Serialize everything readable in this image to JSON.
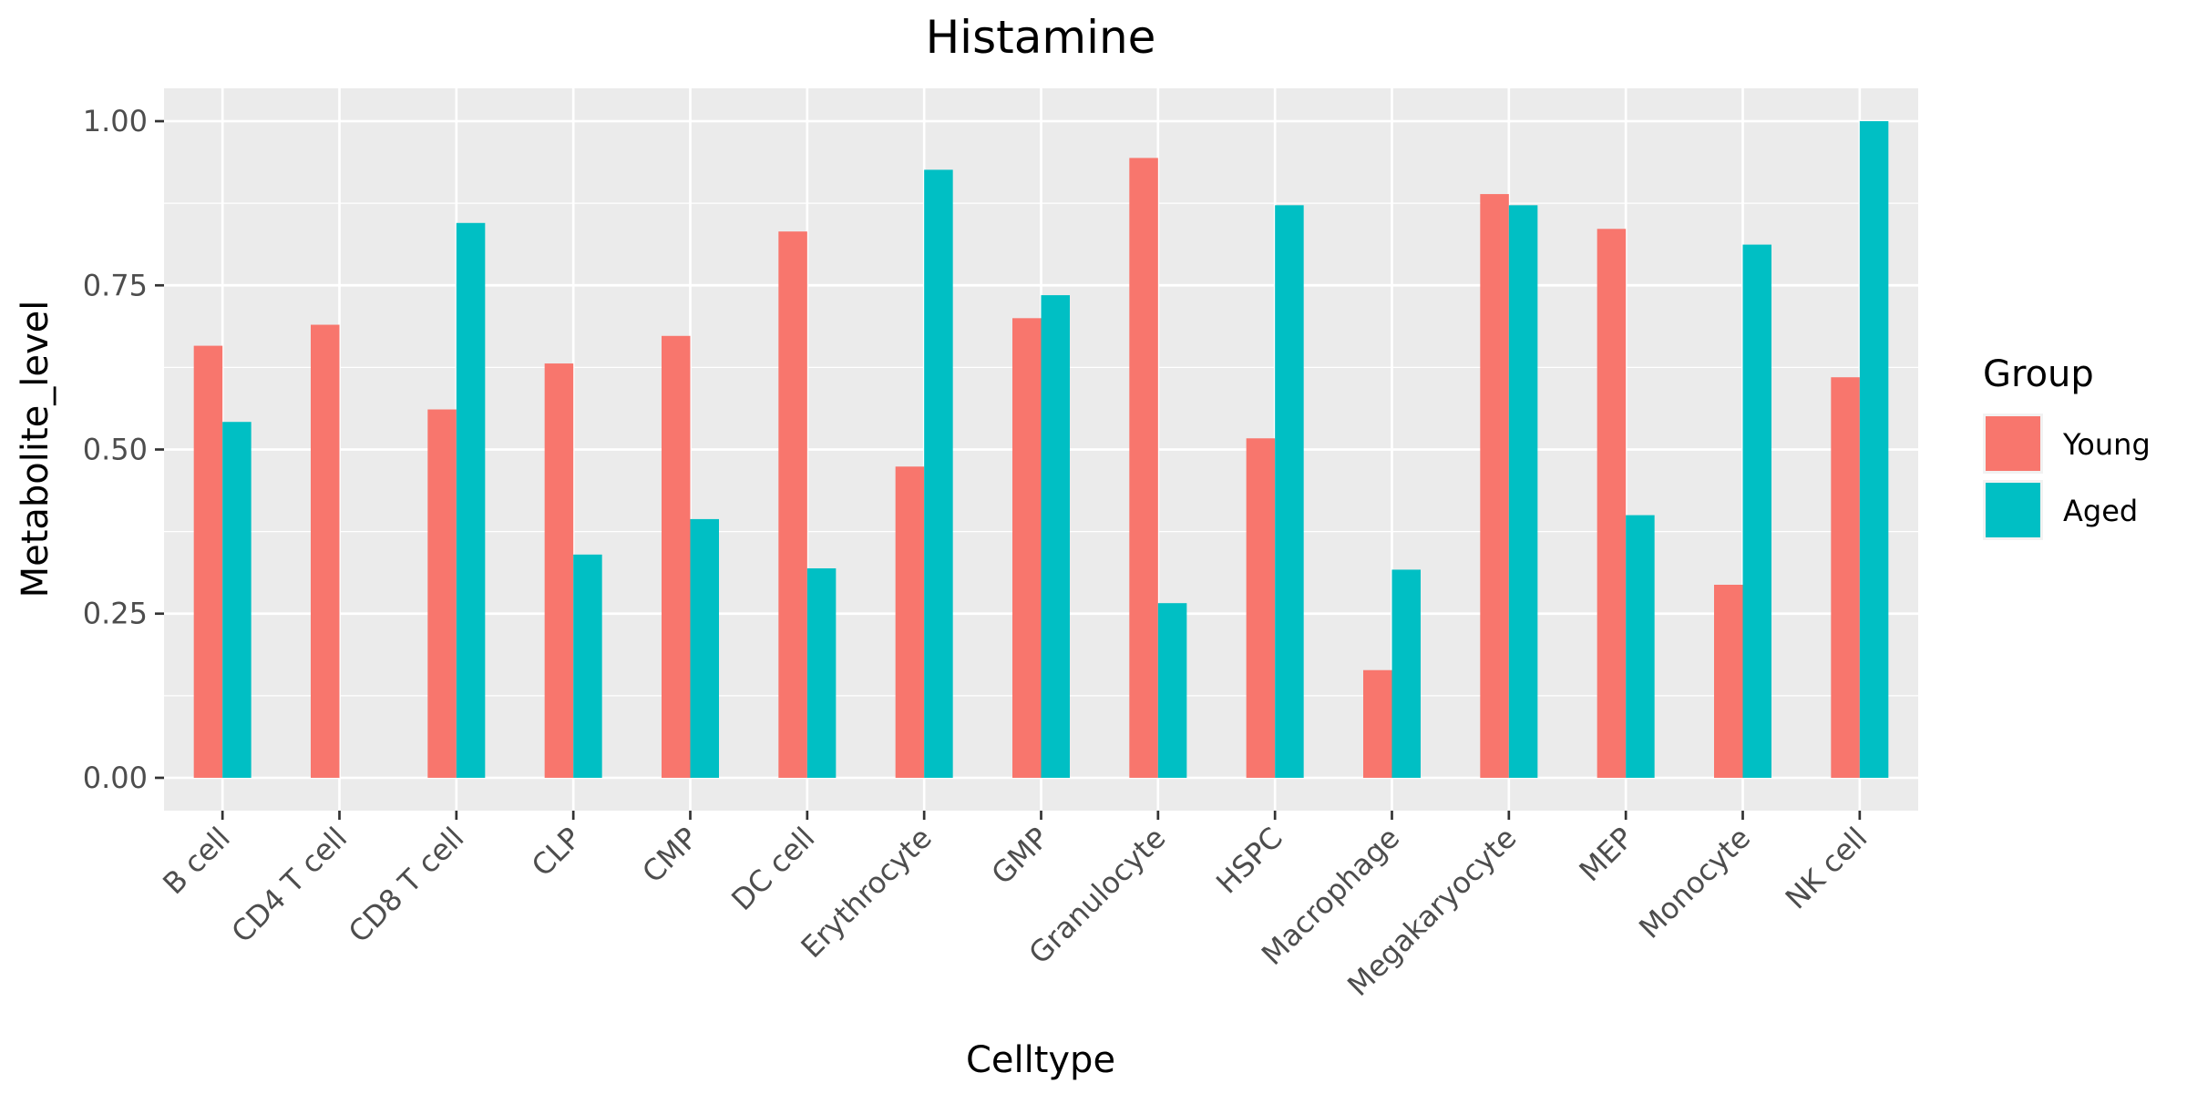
{
  "chart_data": {
    "type": "bar",
    "title": "Histamine",
    "xlabel": "Celltype",
    "ylabel": "Metabolite_level",
    "ylim": [
      -0.05,
      1.05
    ],
    "yticks": [
      0.0,
      0.25,
      0.5,
      0.75,
      1.0
    ],
    "ytick_labels": [
      "0.00",
      "0.25",
      "0.50",
      "0.75",
      "1.00"
    ],
    "grid": true,
    "legend_position": "right",
    "legend_title": "Group",
    "categories": [
      "B cell",
      "CD4 T cell",
      "CD8 T cell",
      "CLP",
      "CMP",
      "DC cell",
      "Erythrocyte",
      "GMP",
      "Granulocyte",
      "HSPC",
      "Macrophage",
      "Megakaryocyte",
      "MEP",
      "Monocyte",
      "NK cell"
    ],
    "series": [
      {
        "name": "Young",
        "color": "#F8766D",
        "values": [
          0.658,
          0.69,
          0.561,
          0.631,
          0.673,
          0.832,
          0.474,
          0.7,
          0.944,
          0.517,
          0.164,
          0.889,
          0.836,
          0.294,
          0.61
        ]
      },
      {
        "name": "Aged",
        "color": "#00BFC4",
        "values": [
          0.542,
          null,
          0.845,
          0.34,
          0.394,
          0.319,
          0.926,
          0.735,
          0.266,
          0.872,
          0.317,
          0.872,
          0.4,
          0.812,
          1.0
        ]
      }
    ]
  }
}
